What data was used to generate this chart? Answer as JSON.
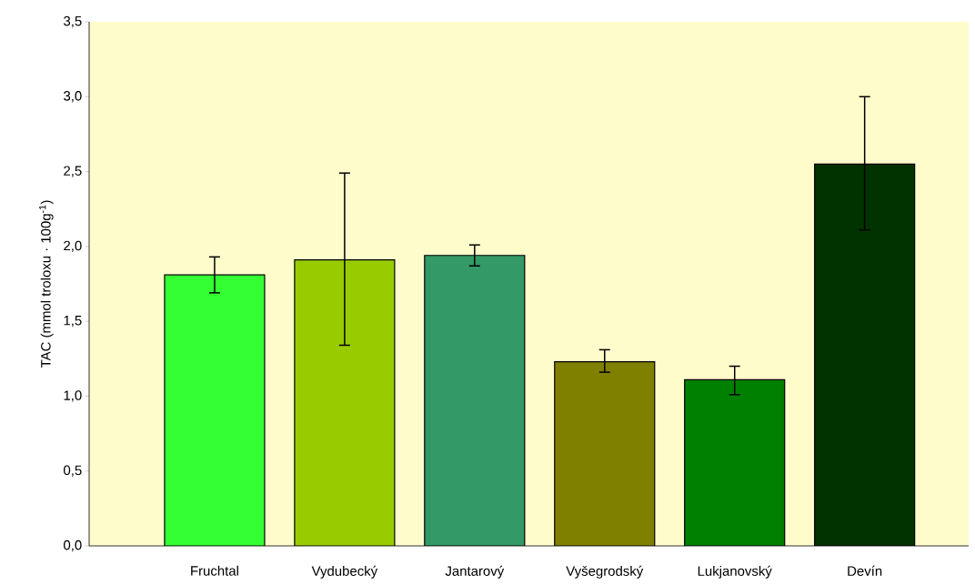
{
  "chart_data": {
    "type": "bar",
    "ylabel": "TAC (mmol troloxu · 100g$^{-1}$)",
    "categories": [
      "Fruchtal",
      "Vydubecký",
      "Jantarový",
      "Vyšegrodský",
      "Lukjanovský",
      "Devín"
    ],
    "values": [
      1.81,
      1.91,
      1.94,
      1.23,
      1.11,
      2.55
    ],
    "errors": [
      [
        1.69,
        1.93
      ],
      [
        1.34,
        2.49
      ],
      [
        1.87,
        2.01
      ],
      [
        1.16,
        1.31
      ],
      [
        1.01,
        1.2
      ],
      [
        2.11,
        3.0
      ]
    ],
    "colors": [
      "#33ff33",
      "#99cc00",
      "#339966",
      "#808000",
      "#008000",
      "#003300"
    ],
    "ylim": [
      0,
      3.5
    ],
    "yticks": [
      {
        "value": 0,
        "label": "0,0"
      },
      {
        "value": 0.5,
        "label": "0,5"
      },
      {
        "value": 1,
        "label": "1,0"
      },
      {
        "value": 1.5,
        "label": "1,5"
      },
      {
        "value": 2,
        "label": "2,0"
      },
      {
        "value": 2.5,
        "label": "2,5"
      },
      {
        "value": 3,
        "label": "3,0"
      },
      {
        "value": 3.5,
        "label": "3,5"
      }
    ],
    "grid": false
  }
}
